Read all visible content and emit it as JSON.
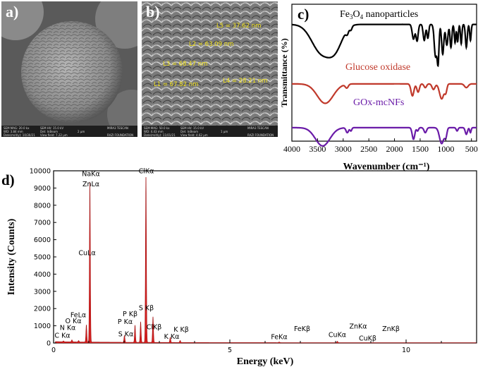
{
  "panel_a": {
    "letter": "a)",
    "info": {
      "sem_mag": "SEM MAG: 20.0 kx",
      "sem_hv": "SEM HV: 15.0 kV",
      "wd": "WD: 3.84 mm",
      "det": "Det: InBeam",
      "date": "Date(m/d/y): 10/30/21",
      "view_field": "View field: 7.22 µm",
      "scale": "2 µm",
      "brand": "MIRA3 TESCAN",
      "foundation": "RAZI FOUNDATION"
    }
  },
  "panel_b": {
    "letter": "b)",
    "measurements": [
      "L5 = 37.62 nm",
      "L2 = 63.09 nm",
      "L3 = 68.47 nm",
      "L1 = 67.82 nm",
      "L4 = 28.21 nm"
    ],
    "info": {
      "sem_mag": "SEM MAG: 50.0 kx",
      "sem_hv": "SEM HV: 15.0 kV",
      "wd": "WD: 4.43 mm",
      "det": "Det: InBeam",
      "date": "Date(m/d/y): 11/01/21",
      "view_field": "View field: 4.62 µm",
      "scale": "1 µm",
      "brand": "MIRA3 TESCAN",
      "foundation": "RAZI FOUNDATION"
    }
  },
  "panel_c": {
    "letter": "c)"
  },
  "panel_d": {
    "letter": "d)"
  },
  "chart_data": [
    {
      "type": "line",
      "title": "",
      "xlabel": "Wavenumber (cm⁻¹)",
      "ylabel": "Transmittance (%)",
      "xlim": [
        4000,
        400
      ],
      "x_ticks": [
        4000,
        3500,
        3000,
        2500,
        2000,
        1500,
        1000,
        500
      ],
      "grid": false,
      "series": [
        {
          "name": "Fe3O4 nanoparticles",
          "label_main": "Fe",
          "label_sub1": "3",
          "label_mid": "O",
          "label_sub2": "4",
          "label_tail": " nanoparticles",
          "color": "#000000",
          "baseline": 0.93,
          "dips": [
            [
              3430,
              260,
              0.6
            ],
            [
              3150,
              200,
              0.45
            ],
            [
              2920,
              35,
              0.1
            ],
            [
              2850,
              30,
              0.08
            ],
            [
              1630,
              35,
              0.32
            ],
            [
              1560,
              30,
              0.36
            ],
            [
              1420,
              30,
              0.35
            ],
            [
              1350,
              25,
              0.3
            ],
            [
              1200,
              35,
              0.7
            ],
            [
              1150,
              25,
              0.8
            ],
            [
              1060,
              30,
              0.65
            ],
            [
              980,
              30,
              0.45
            ],
            [
              900,
              25,
              0.5
            ],
            [
              820,
              20,
              0.4
            ],
            [
              770,
              20,
              0.38
            ],
            [
              700,
              20,
              0.42
            ],
            [
              600,
              25,
              0.5
            ],
            [
              520,
              20,
              0.35
            ]
          ]
        },
        {
          "name": "Glucose oxidase",
          "color": "#c0392b",
          "baseline": 0.55,
          "dips": [
            [
              3350,
              220,
              0.52
            ],
            [
              2930,
              40,
              0.1
            ],
            [
              1650,
              40,
              0.32
            ],
            [
              1540,
              35,
              0.22
            ],
            [
              1400,
              35,
              0.1
            ],
            [
              1240,
              40,
              0.15
            ],
            [
              1080,
              60,
              0.4
            ],
            [
              1000,
              30,
              0.2
            ],
            [
              600,
              50,
              0.1
            ]
          ]
        },
        {
          "name": "GOx-mcNFs",
          "color": "#6a1ba8",
          "baseline": 0.3,
          "dips": [
            [
              3400,
              200,
              0.55
            ],
            [
              2920,
              35,
              0.15
            ],
            [
              2850,
              25,
              0.1
            ],
            [
              1630,
              35,
              0.35
            ],
            [
              1550,
              25,
              0.1
            ],
            [
              1400,
              35,
              0.15
            ],
            [
              1080,
              60,
              0.48
            ],
            [
              1000,
              30,
              0.25
            ],
            [
              780,
              25,
              0.1
            ],
            [
              600,
              30,
              0.2
            ],
            [
              520,
              20,
              0.15
            ]
          ]
        }
      ]
    },
    {
      "type": "area",
      "title": "",
      "xlabel": "Energy (keV)",
      "ylabel": "Intensity (Counts)",
      "xlim": [
        0,
        12
      ],
      "ylim": [
        0,
        10000
      ],
      "x_ticks": [
        0,
        5,
        10
      ],
      "x_tick_labels": [
        "0",
        "5",
        "10"
      ],
      "y_ticks": [
        0,
        1000,
        2000,
        3000,
        4000,
        5000,
        6000,
        7000,
        8000,
        9000,
        10000
      ],
      "grid": false,
      "color": "#d62020",
      "peaks": [
        [
          0.28,
          50
        ],
        [
          0.52,
          120
        ],
        [
          0.71,
          80
        ],
        [
          0.93,
          1000
        ],
        [
          1.03,
          9300
        ],
        [
          2.01,
          400
        ],
        [
          2.31,
          1000
        ],
        [
          2.47,
          1200
        ],
        [
          2.62,
          9700
        ],
        [
          2.82,
          1500
        ],
        [
          3.31,
          300
        ],
        [
          3.59,
          120
        ],
        [
          6.4,
          40
        ],
        [
          8.05,
          80
        ]
      ],
      "annotations": [
        {
          "text": "NaKα",
          "x": 1.06,
          "y": 9700
        },
        {
          "text": "ZnLα",
          "x": 1.06,
          "y": 9100
        },
        {
          "text": "CuLα",
          "x": 0.95,
          "y": 5100
        },
        {
          "text": "FeLα",
          "x": 0.7,
          "y": 1500
        },
        {
          "text": "O Kα",
          "x": 0.56,
          "y": 1150
        },
        {
          "text": "N Kα",
          "x": 0.4,
          "y": 750
        },
        {
          "text": "C Kα",
          "x": 0.25,
          "y": 300
        },
        {
          "text": "ClKα",
          "x": 2.63,
          "y": 9850
        },
        {
          "text": "S Kβ",
          "x": 2.63,
          "y": 1900
        },
        {
          "text": "P Kβ",
          "x": 2.17,
          "y": 1550
        },
        {
          "text": "P Kα",
          "x": 2.03,
          "y": 1100
        },
        {
          "text": "S Kα",
          "x": 2.05,
          "y": 380
        },
        {
          "text": "ClKβ",
          "x": 2.85,
          "y": 800
        },
        {
          "text": "K Kβ",
          "x": 3.62,
          "y": 650
        },
        {
          "text": "K Kα",
          "x": 3.35,
          "y": 250
        },
        {
          "text": "FeKα",
          "x": 6.4,
          "y": 220
        },
        {
          "text": "FeKβ",
          "x": 7.05,
          "y": 700
        },
        {
          "text": "CuKα",
          "x": 8.05,
          "y": 350
        },
        {
          "text": "ZnKα",
          "x": 8.64,
          "y": 850
        },
        {
          "text": "CuKβ",
          "x": 8.91,
          "y": 150
        },
        {
          "text": "ZnKβ",
          "x": 9.57,
          "y": 700
        }
      ]
    }
  ]
}
